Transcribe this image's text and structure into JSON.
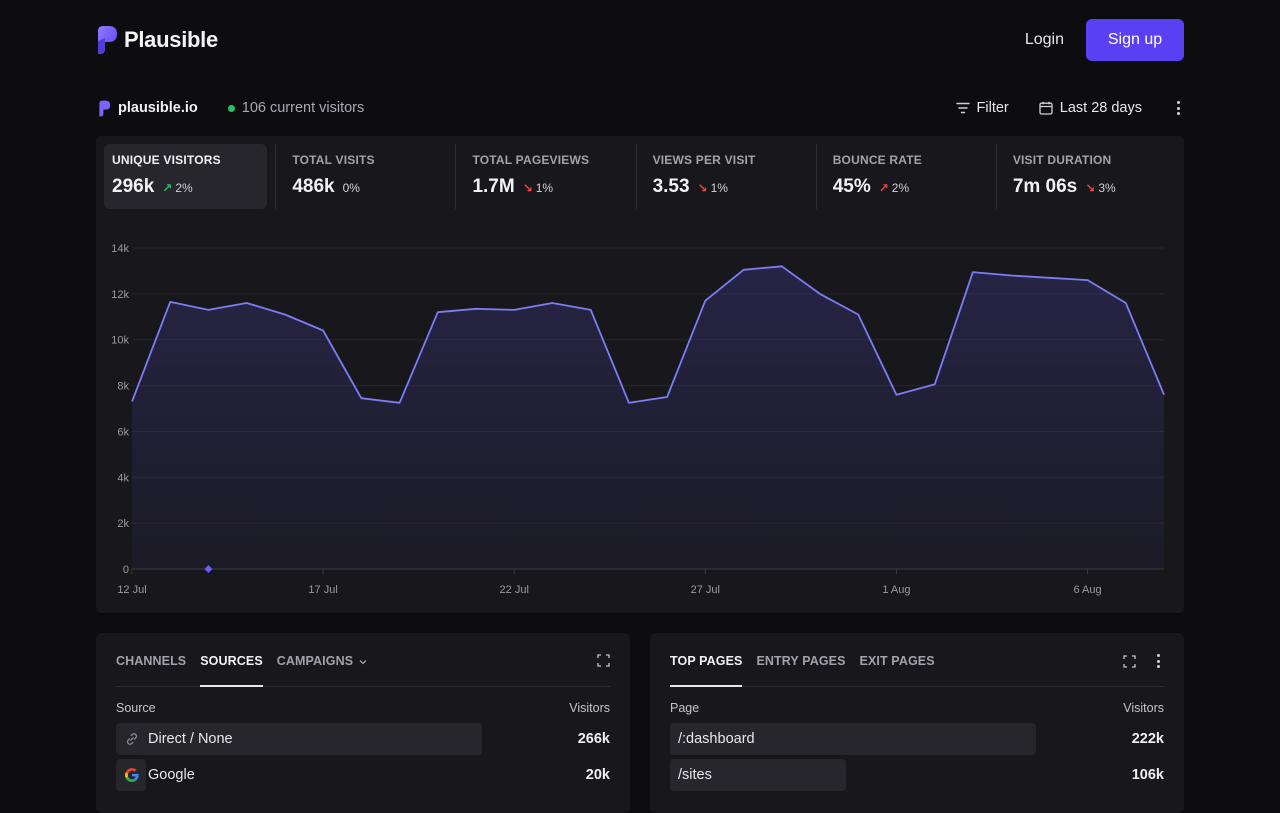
{
  "header": {
    "brand": "Plausible",
    "login_label": "Login",
    "signup_label": "Sign up",
    "accent_color": "#5b3ff2"
  },
  "site": {
    "domain": "plausible.io",
    "current_visitors_text": "106 current visitors",
    "filter_label": "Filter",
    "date_range_label": "Last 28 days"
  },
  "stats": [
    {
      "label": "UNIQUE VISITORS",
      "value": "296k",
      "change": "2%",
      "direction": "up",
      "sentiment": "good"
    },
    {
      "label": "TOTAL VISITS",
      "value": "486k",
      "change": "0%",
      "direction": "none",
      "sentiment": "neutral"
    },
    {
      "label": "TOTAL PAGEVIEWS",
      "value": "1.7M",
      "change": "1%",
      "direction": "down",
      "sentiment": "bad"
    },
    {
      "label": "VIEWS PER VISIT",
      "value": "3.53",
      "change": "1%",
      "direction": "down",
      "sentiment": "bad"
    },
    {
      "label": "BOUNCE RATE",
      "value": "45%",
      "change": "2%",
      "direction": "up",
      "sentiment": "bad"
    },
    {
      "label": "VISIT DURATION",
      "value": "7m 06s",
      "change": "3%",
      "direction": "down",
      "sentiment": "bad"
    }
  ],
  "chart_data": {
    "type": "area",
    "title": "",
    "xlabel": "",
    "ylabel": "",
    "ylim": [
      0,
      14000
    ],
    "y_ticks": [
      "0",
      "2k",
      "4k",
      "6k",
      "8k",
      "10k",
      "12k",
      "14k"
    ],
    "x_tick_labels": [
      "12 Jul",
      "17 Jul",
      "22 Jul",
      "27 Jul",
      "1 Aug",
      "6 Aug"
    ],
    "x_tick_indices": [
      0,
      5,
      10,
      15,
      20,
      25
    ],
    "grid": true,
    "line_color": "#7c7cf5",
    "x": [
      "12 Jul",
      "13 Jul",
      "14 Jul",
      "15 Jul",
      "16 Jul",
      "17 Jul",
      "18 Jul",
      "19 Jul",
      "20 Jul",
      "21 Jul",
      "22 Jul",
      "23 Jul",
      "24 Jul",
      "25 Jul",
      "26 Jul",
      "27 Jul",
      "28 Jul",
      "29 Jul",
      "30 Jul",
      "31 Jul",
      "1 Aug",
      "2 Aug",
      "3 Aug",
      "4 Aug",
      "5 Aug",
      "6 Aug",
      "7 Aug",
      "8 Aug"
    ],
    "series": [
      {
        "values": [
          7300,
          11650,
          11300,
          11600,
          11100,
          10400,
          7450,
          7250,
          11200,
          11350,
          11300,
          11600,
          11300,
          7250,
          7500,
          11700,
          13050,
          13200,
          12000,
          11100,
          7600,
          8050,
          12950,
          12800,
          12700,
          12600,
          11600,
          7600
        ]
      }
    ],
    "annotation_marker_index": 2
  },
  "sources_panel": {
    "tabs": [
      {
        "label": "CHANNELS",
        "active": false
      },
      {
        "label": "SOURCES",
        "active": true
      },
      {
        "label": "CAMPAIGNS",
        "active": false,
        "dropdown": true
      }
    ],
    "column_label": "Source",
    "value_label": "Visitors",
    "rows": [
      {
        "label": "Direct / None",
        "value": "266k",
        "icon": "link-icon",
        "share": 1.0
      },
      {
        "label": "Google",
        "value": "20k",
        "icon": "google-icon",
        "share": 0.075
      }
    ]
  },
  "pages_panel": {
    "tabs": [
      {
        "label": "TOP PAGES",
        "active": true
      },
      {
        "label": "ENTRY PAGES",
        "active": false
      },
      {
        "label": "EXIT PAGES",
        "active": false
      }
    ],
    "column_label": "Page",
    "value_label": "Visitors",
    "rows": [
      {
        "label": "/:dashboard",
        "value": "222k",
        "share": 1.0
      },
      {
        "label": "/sites",
        "value": "106k",
        "share": 0.48
      }
    ]
  }
}
